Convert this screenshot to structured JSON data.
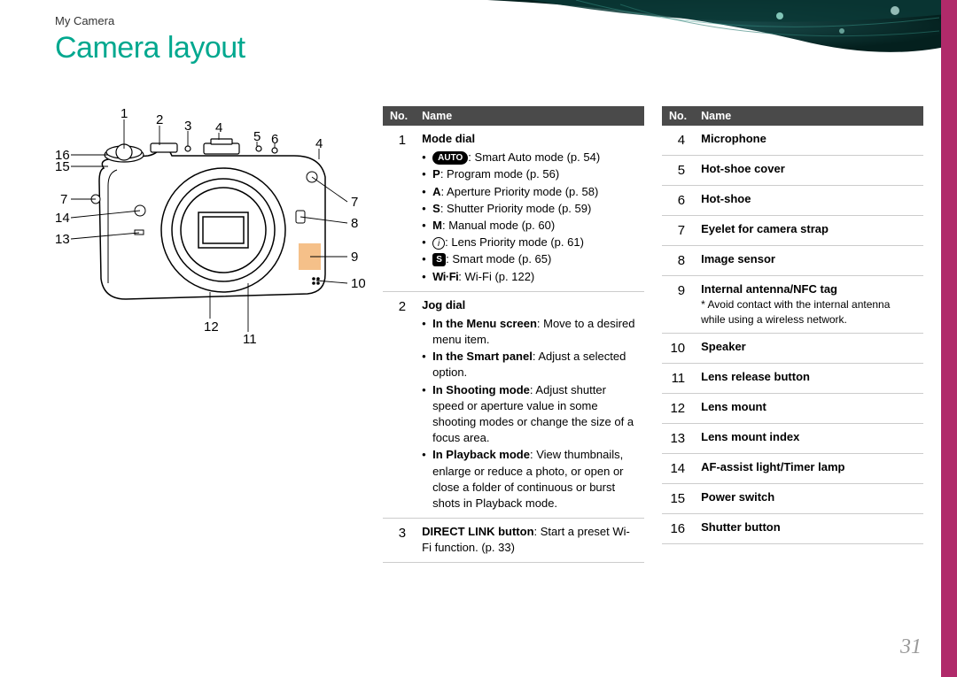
{
  "breadcrumb": "My Camera",
  "title": "Camera layout",
  "page_number": "31",
  "colors": {
    "title": "#00a88f",
    "header_bg": "#4a4a4a",
    "header_fg": "#ffffff",
    "border": "#cccccc",
    "stripe": "#b02a6a",
    "pagenum": "#999999",
    "highlight": "#f5c089"
  },
  "table_header": {
    "no": "No.",
    "name": "Name"
  },
  "callouts": {
    "top": [
      "1",
      "2",
      "3",
      "4",
      "5",
      "6",
      "4"
    ],
    "left": [
      "16",
      "15",
      "7",
      "14",
      "13"
    ],
    "right": [
      "7",
      "8",
      "9",
      "10"
    ],
    "bottom": [
      "12",
      "11"
    ]
  },
  "left_table": [
    {
      "no": "1",
      "name": "Mode dial",
      "items": [
        {
          "icon": "auto-badge",
          "icon_text": "AUTO",
          "text": ": Smart Auto mode (p. 54)"
        },
        {
          "icon": "mode-letter",
          "icon_text": "P",
          "text": ": Program mode (p. 56)"
        },
        {
          "icon": "mode-letter",
          "icon_text": "A",
          "text": ": Aperture Priority mode (p. 58)"
        },
        {
          "icon": "mode-letter",
          "icon_text": "S",
          "text": ": Shutter Priority mode (p. 59)"
        },
        {
          "icon": "mode-letter",
          "icon_text": "M",
          "text": ": Manual mode (p. 60)"
        },
        {
          "icon": "circle-i",
          "icon_text": "i",
          "text": ": Lens Priority mode (p. 61)"
        },
        {
          "icon": "smart-badge",
          "icon_text": "S",
          "text": ": Smart mode (p. 65)"
        },
        {
          "icon": "wifi",
          "icon_text": "Wi·Fi",
          "text": ": Wi-Fi (p. 122)"
        }
      ]
    },
    {
      "no": "2",
      "name": "Jog dial",
      "items": [
        {
          "bold": "In the Menu screen",
          "text": ": Move to a desired menu item."
        },
        {
          "bold": "In the Smart panel",
          "text": ": Adjust a selected option."
        },
        {
          "bold": "In Shooting mode",
          "text": ": Adjust shutter speed or aperture value in some shooting modes or change the size of a focus area."
        },
        {
          "bold": "In Playback mode",
          "text": ": View thumbnails, enlarge or reduce a photo, or open or close a folder of continuous or burst shots in Playback mode."
        }
      ]
    },
    {
      "no": "3",
      "name_inline": "DIRECT LINK button",
      "inline_text": ": Start a preset Wi-Fi function. (p. 33)"
    }
  ],
  "right_table": [
    {
      "no": "4",
      "name": "Microphone"
    },
    {
      "no": "5",
      "name": "Hot-shoe cover"
    },
    {
      "no": "6",
      "name": "Hot-shoe"
    },
    {
      "no": "7",
      "name": "Eyelet for camera strap"
    },
    {
      "no": "8",
      "name": "Image sensor"
    },
    {
      "no": "9",
      "name": "Internal antenna/NFC tag",
      "note": "* Avoid contact with the internal antenna while using a wireless network."
    },
    {
      "no": "10",
      "name": "Speaker"
    },
    {
      "no": "11",
      "name": "Lens release button"
    },
    {
      "no": "12",
      "name": "Lens mount"
    },
    {
      "no": "13",
      "name": "Lens mount index"
    },
    {
      "no": "14",
      "name": "AF-assist light/Timer lamp"
    },
    {
      "no": "15",
      "name": "Power switch"
    },
    {
      "no": "16",
      "name": "Shutter button"
    }
  ]
}
